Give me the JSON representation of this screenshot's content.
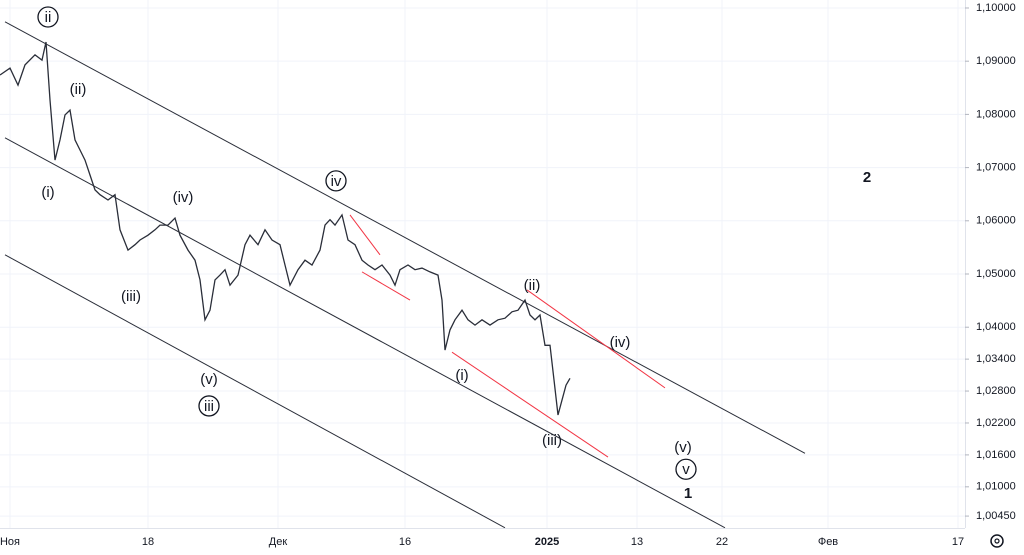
{
  "chart_data": {
    "type": "line",
    "x": [
      0,
      1,
      1.8,
      2.5,
      3.5,
      4.2,
      4.6,
      5,
      5.5,
      6,
      6.5,
      7,
      7.5,
      8,
      8.5,
      9,
      9.5,
      10,
      10.8,
      11.5,
      12,
      12.8,
      13.5,
      14,
      14.8,
      15.5,
      16,
      16.8,
      17.5,
      18,
      18.8,
      19.5,
      20,
      20.5,
      21,
      21.5,
      22,
      22.5,
      23,
      23.8,
      24.5,
      25,
      25.8,
      26.5,
      27.2,
      28,
      28.5,
      29,
      29.8,
      30.5,
      31.2,
      32,
      32.5,
      33,
      33.5,
      34.2,
      34.8,
      35.5,
      36.2,
      36.8,
      37.5,
      38.2,
      39,
      39.5,
      40,
      40.8,
      41.5,
      42.2,
      43,
      43.8,
      44.2,
      44.5,
      45,
      45.5,
      46.2,
      46.8,
      47.5,
      48.2,
      49,
      49.8,
      50.5,
      51.2,
      51.8,
      52.5,
      53,
      53.5,
      54,
      54.5,
      55,
      55.4,
      55.8,
      56.2,
      56.6,
      57
    ],
    "series": [
      {
        "color": "#2a2e39",
        "values": [
          1.0874,
          1.0887,
          1.0855,
          1.0893,
          1.0912,
          1.0902,
          1.0936,
          1.0827,
          1.0714,
          1.0752,
          1.0799,
          1.0808,
          1.0752,
          1.0733,
          1.0714,
          1.0686,
          1.0658,
          1.0649,
          1.0639,
          1.0649,
          1.0583,
          1.0545,
          1.0555,
          1.0564,
          1.0573,
          1.0583,
          1.0592,
          1.0592,
          1.0605,
          1.0573,
          1.0545,
          1.0526,
          1.0489,
          1.0414,
          1.0432,
          1.0489,
          1.0498,
          1.0508,
          1.0479,
          1.0498,
          1.0555,
          1.0573,
          1.0555,
          1.0583,
          1.0564,
          1.0555,
          1.0517,
          1.0479,
          1.0508,
          1.0526,
          1.0517,
          1.0545,
          1.0592,
          1.0602,
          1.0592,
          1.0611,
          1.0564,
          1.0555,
          1.0526,
          1.0517,
          1.0508,
          1.0517,
          1.0498,
          1.0479,
          1.0508,
          1.0517,
          1.0508,
          1.0511,
          1.0504,
          1.0498,
          1.0451,
          1.0357,
          1.0395,
          1.0414,
          1.0432,
          1.0414,
          1.0404,
          1.0414,
          1.0404,
          1.0414,
          1.0417,
          1.0429,
          1.0432,
          1.0451,
          1.0423,
          1.0414,
          1.0423,
          1.0366,
          1.0366,
          1.0301,
          1.0235,
          1.0263,
          1.0291,
          1.0304
        ]
      }
    ],
    "xlim": [
      0,
      96.5
    ],
    "xticks": [
      {
        "value": 1.0,
        "label": "Ноя"
      },
      {
        "value": 14.8,
        "label": "18"
      },
      {
        "value": 27.8,
        "label": "Дек"
      },
      {
        "value": 40.5,
        "label": "16"
      },
      {
        "value": 54.7,
        "label": "2025"
      },
      {
        "value": 63.7,
        "label": "13"
      },
      {
        "value": 72.2,
        "label": "22"
      },
      {
        "value": 82.8,
        "label": "Фев"
      },
      {
        "value": 95.8,
        "label": "17"
      }
    ],
    "ylim": [
      1.00226,
      1.1015
    ],
    "yticks": [
      {
        "value": 1.1,
        "label": "1,10000"
      },
      {
        "value": 1.09,
        "label": "1,09000"
      },
      {
        "value": 1.08,
        "label": "1,08000"
      },
      {
        "value": 1.07,
        "label": "1,07000"
      },
      {
        "value": 1.06,
        "label": "1,06000"
      },
      {
        "value": 1.05,
        "label": "1,05000"
      },
      {
        "value": 1.04,
        "label": "1,04000"
      },
      {
        "value": 1.034,
        "label": "1,03400"
      },
      {
        "value": 1.028,
        "label": "1,02800"
      },
      {
        "value": 1.022,
        "label": "1,02200"
      },
      {
        "value": 1.016,
        "label": "1,01600"
      },
      {
        "value": 1.01,
        "label": "1,01000"
      },
      {
        "value": 1.0045,
        "label": "1,00450"
      }
    ],
    "grid": true,
    "lines": [
      {
        "color": "#2a2e39",
        "x": [
          0.5,
          80.5
        ],
        "y": [
          1.0974,
          1.0163
        ]
      },
      {
        "color": "#2a2e39",
        "x": [
          0.5,
          72.5
        ],
        "y": [
          1.0756,
          1.0023
        ]
      },
      {
        "color": "#2a2e39",
        "x": [
          0.5,
          50.5
        ],
        "y": [
          1.0536,
          1.0023
        ]
      },
      {
        "color": "#f23645",
        "x": [
          35,
          38
        ],
        "y": [
          1.0611,
          1.0536
        ]
      },
      {
        "color": "#f23645",
        "x": [
          36.2,
          41
        ],
        "y": [
          1.0504,
          1.0451
        ]
      },
      {
        "color": "#f23645",
        "x": [
          45.2,
          60.8
        ],
        "y": [
          1.0353,
          1.0156
        ]
      },
      {
        "color": "#f23645",
        "x": [
          52.7,
          66.5
        ],
        "y": [
          1.047,
          1.0286
        ]
      }
    ],
    "annotations": [
      {
        "text": "ii",
        "circled": true,
        "x": 4.8,
        "y": 1.0983
      },
      {
        "text": "(ii)",
        "circled": false,
        "x": 7.8,
        "y": 1.0848
      },
      {
        "text": "(i)",
        "circled": false,
        "x": 4.8,
        "y": 1.0654
      },
      {
        "text": "(iv)",
        "circled": false,
        "x": 18.3,
        "y": 1.0645
      },
      {
        "text": "(iii)",
        "circled": false,
        "x": 13.1,
        "y": 1.0459
      },
      {
        "text": "(v)",
        "circled": false,
        "x": 20.9,
        "y": 1.0303
      },
      {
        "text": "iii",
        "circled": true,
        "x": 20.9,
        "y": 1.0252
      },
      {
        "text": "iv",
        "circled": true,
        "x": 33.6,
        "y": 1.0675
      },
      {
        "text": "(i)",
        "circled": false,
        "x": 46.2,
        "y": 1.031
      },
      {
        "text": "(ii)",
        "circled": false,
        "x": 53.2,
        "y": 1.0479
      },
      {
        "text": "(iv)",
        "circled": false,
        "x": 62,
        "y": 1.0372
      },
      {
        "text": "(iii)",
        "circled": false,
        "x": 55.2,
        "y": 1.0188
      },
      {
        "text": "(v)",
        "circled": false,
        "x": 68.3,
        "y": 1.0175
      },
      {
        "text": "v",
        "circled": true,
        "x": 68.6,
        "y": 1.0133
      },
      {
        "text": "1",
        "circled": false,
        "x": 68.8,
        "y": 1.0088
      },
      {
        "text": "2",
        "circled": false,
        "x": 86.7,
        "y": 1.0682
      }
    ]
  }
}
